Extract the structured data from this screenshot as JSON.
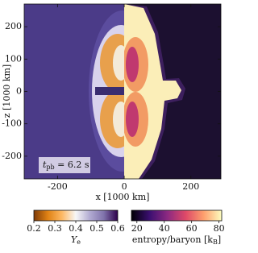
{
  "chart_data": {
    "type": "heatmap",
    "xlabel": "x [1000 km]",
    "ylabel": "z [1000 km]",
    "xlim": [
      -300,
      290
    ],
    "xticks": [
      -200,
      0,
      200
    ],
    "ylim": [
      -270,
      270
    ],
    "yticks": [
      -200,
      -100,
      0,
      100,
      200
    ],
    "annotation": {
      "symbol": "t",
      "subscript": "pb",
      "text": " = 6.2 s"
    },
    "colorbars": [
      {
        "label": {
          "symbol": "Y",
          "subscript": "e"
        },
        "lim": [
          0.2,
          0.6
        ],
        "ticks": [
          0.2,
          0.3,
          0.4,
          0.5,
          0.6
        ],
        "colors": [
          "#7f3b08",
          "#e08214",
          "#fdb863",
          "#f7f7f7",
          "#b2abd2",
          "#8073ac",
          "#2d004b"
        ]
      },
      {
        "label": {
          "text": "entropy/baryon [k",
          "subscript": "B",
          "suffix": "]"
        },
        "lim": [
          16,
          82
        ],
        "ticks": [
          20,
          40,
          60,
          80
        ],
        "colors": [
          "#000004",
          "#3b0f70",
          "#8c2981",
          "#de4968",
          "#fe9f6d",
          "#fcfdbf"
        ]
      }
    ]
  }
}
